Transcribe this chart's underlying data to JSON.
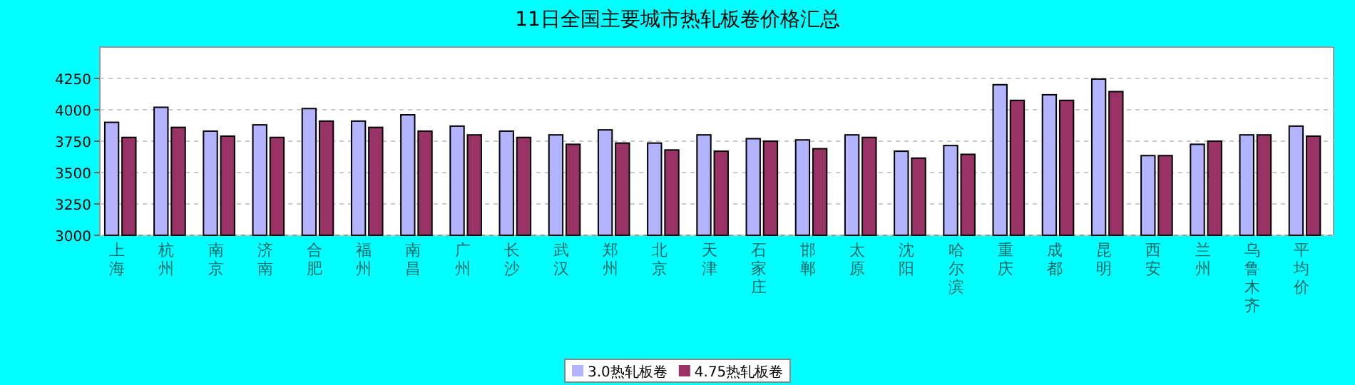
{
  "chart_data": {
    "type": "bar",
    "title": "11日全国主要城市热轧板卷价格汇总",
    "categories": [
      "上海",
      "杭州",
      "南京",
      "济南",
      "合肥",
      "福州",
      "南昌",
      "广州",
      "长沙",
      "武汉",
      "郑州",
      "北京",
      "天津",
      "石家庄",
      "邯郸",
      "太原",
      "沈阳",
      "哈尔滨",
      "重庆",
      "成都",
      "昆明",
      "西安",
      "兰州",
      "乌鲁木齐",
      "平均价"
    ],
    "series": [
      {
        "name": "3.0热轧板卷",
        "color": "#b3b3ff",
        "values": [
          3900,
          4020,
          3830,
          3880,
          4010,
          3910,
          3960,
          3870,
          3830,
          3800,
          3840,
          3735,
          3800,
          3770,
          3760,
          3800,
          3670,
          3715,
          4200,
          4120,
          4245,
          3635,
          3725,
          3800,
          3870
        ]
      },
      {
        "name": "4.75热轧板卷",
        "color": "#993366",
        "values": [
          3780,
          3860,
          3790,
          3780,
          3910,
          3860,
          3830,
          3800,
          3780,
          3725,
          3735,
          3680,
          3670,
          3750,
          3690,
          3780,
          3615,
          3645,
          4075,
          4075,
          4145,
          3635,
          3750,
          3800,
          3790
        ]
      }
    ],
    "ylim": [
      3000,
      4500
    ],
    "yticks": [
      3000,
      3250,
      3500,
      3750,
      4000,
      4250
    ],
    "grid": "y",
    "legend": "bottom"
  }
}
